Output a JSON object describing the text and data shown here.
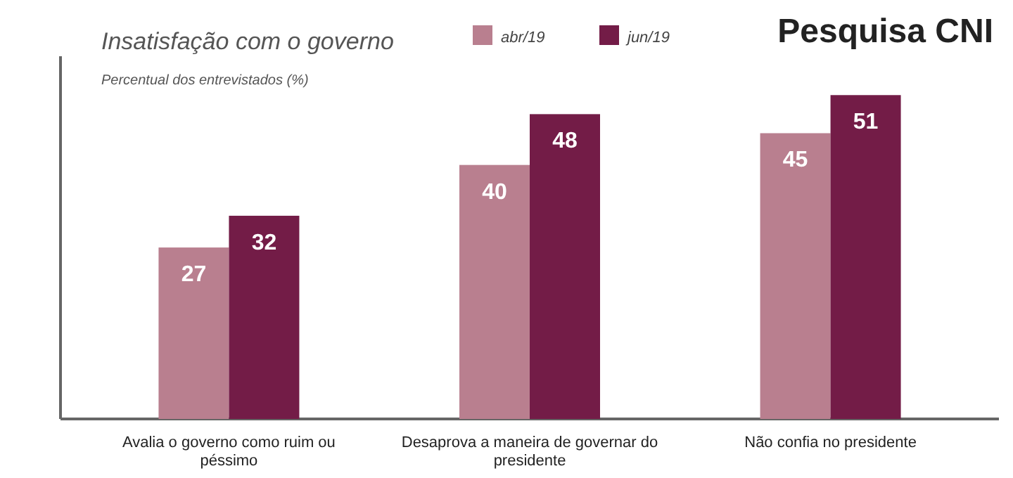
{
  "chart_data": {
    "type": "bar",
    "title": "Pesquisa CNI",
    "subtitle": "Insatisfação com o governo",
    "ylabel": "Percentual dos entrevistados (%)",
    "categories": [
      "Avalia o governo como ruim ou péssimo",
      "Desaprova a maneira de governar do presidente",
      "Não confia no presidente"
    ],
    "series": [
      {
        "name": "abr/19",
        "color": "#b97f8f",
        "values": [
          27,
          40,
          45
        ]
      },
      {
        "name": "jun/19",
        "color": "#731c47",
        "values": [
          32,
          48,
          51
        ]
      }
    ],
    "data_labels": true,
    "legend": "top"
  }
}
